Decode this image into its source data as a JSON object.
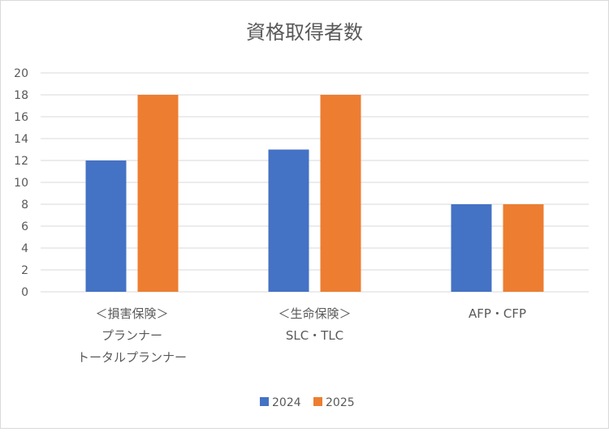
{
  "chart_data": {
    "type": "bar",
    "title": "資格取得者数",
    "categories": [
      [
        "＜損害保険＞",
        "プランナー",
        "トータルプランナー"
      ],
      [
        "＜生命保険＞",
        "SLC・TLC"
      ],
      [
        "AFP・CFP"
      ]
    ],
    "series": [
      {
        "name": "2024",
        "values": [
          12,
          13,
          8
        ],
        "color": "#4472C4"
      },
      {
        "name": "2025",
        "values": [
          18,
          18,
          8
        ],
        "color": "#ED7D31"
      }
    ],
    "ylim": [
      0,
      20
    ],
    "yticks": [
      0,
      2,
      4,
      6,
      8,
      10,
      12,
      14,
      16,
      18,
      20
    ],
    "xlabel": "",
    "ylabel": "",
    "grid": true,
    "legend": "bottom"
  }
}
